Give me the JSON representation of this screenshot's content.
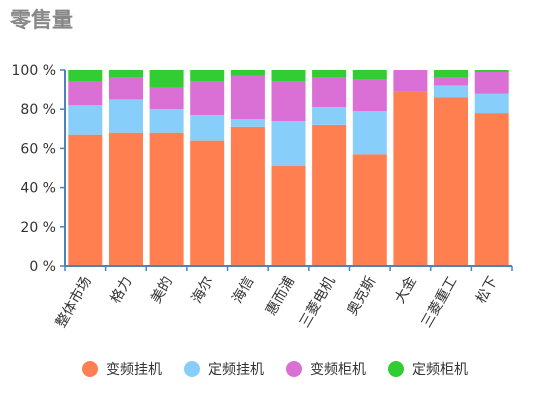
{
  "chart_data": {
    "type": "bar",
    "stacked": true,
    "title": "零售量",
    "categories": [
      "整体市场",
      "格力",
      "美的",
      "海尔",
      "海信",
      "惠而浦",
      "三菱电机",
      "奥克斯",
      "大金",
      "三菱重工",
      "松下"
    ],
    "series": [
      {
        "name": "变频挂机",
        "color": "#ff7f50",
        "values": [
          67,
          68,
          68,
          64,
          71,
          51,
          72,
          57,
          89,
          86,
          78
        ]
      },
      {
        "name": "定频挂机",
        "color": "#87cefa",
        "values": [
          15,
          17,
          12,
          13,
          4,
          23,
          9,
          22,
          0,
          6,
          10
        ]
      },
      {
        "name": "变频柜机",
        "color": "#da70d6",
        "values": [
          12,
          11,
          11,
          17,
          22,
          20,
          15,
          16,
          11,
          4,
          11
        ]
      },
      {
        "name": "定频柜机",
        "color": "#32cd32",
        "values": [
          6,
          4,
          9,
          6,
          3,
          6,
          4,
          5,
          0,
          4,
          1
        ]
      }
    ],
    "ylim": [
      0,
      100
    ],
    "ytick_labels": [
      "0 %",
      "20 %",
      "40 %",
      "60 %",
      "80 %",
      "100 %"
    ],
    "xlabel": "",
    "ylabel": "",
    "legend_position": "bottom",
    "grid": false
  }
}
